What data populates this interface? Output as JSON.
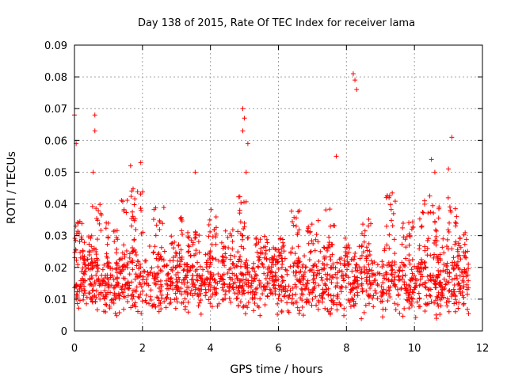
{
  "chart_data": {
    "type": "scatter",
    "title": "Day 138 of 2015, Rate Of TEC Index for receiver lama",
    "xlabel": "GPS time / hours",
    "ylabel": "ROTI / TECUs",
    "xlim": [
      0,
      12
    ],
    "ylim": [
      0,
      0.09
    ],
    "xticks": [
      0,
      2,
      4,
      6,
      8,
      10,
      12
    ],
    "xtick_labels": [
      "0",
      "2",
      "4",
      "6",
      "8",
      "10",
      "12"
    ],
    "yticks": [
      0,
      0.01,
      0.02,
      0.03,
      0.04,
      0.05,
      0.06,
      0.07,
      0.08,
      0.09
    ],
    "ytick_labels": [
      "0",
      "0.01",
      "0.02",
      "0.03",
      "0.04",
      "0.05",
      "0.06",
      "0.07",
      "0.08",
      "0.09"
    ],
    "grid": true,
    "marker": "+",
    "color": "#ff0000",
    "x_range_observed": [
      0,
      11.6
    ],
    "typical_band": [
      0.005,
      0.025
    ],
    "notable_points": [
      {
        "x": 0.0,
        "y": 0.068
      },
      {
        "x": 0.05,
        "y": 0.059
      },
      {
        "x": 0.6,
        "y": 0.068
      },
      {
        "x": 0.6,
        "y": 0.063
      },
      {
        "x": 0.55,
        "y": 0.05
      },
      {
        "x": 1.65,
        "y": 0.052
      },
      {
        "x": 1.95,
        "y": 0.053
      },
      {
        "x": 3.55,
        "y": 0.05
      },
      {
        "x": 4.95,
        "y": 0.07
      },
      {
        "x": 5.0,
        "y": 0.067
      },
      {
        "x": 4.95,
        "y": 0.063
      },
      {
        "x": 5.1,
        "y": 0.059
      },
      {
        "x": 5.05,
        "y": 0.05
      },
      {
        "x": 7.7,
        "y": 0.055
      },
      {
        "x": 8.2,
        "y": 0.081
      },
      {
        "x": 8.25,
        "y": 0.079
      },
      {
        "x": 8.3,
        "y": 0.076
      },
      {
        "x": 10.5,
        "y": 0.054
      },
      {
        "x": 10.6,
        "y": 0.05
      },
      {
        "x": 11.1,
        "y": 0.061
      },
      {
        "x": 11.0,
        "y": 0.051
      }
    ]
  }
}
